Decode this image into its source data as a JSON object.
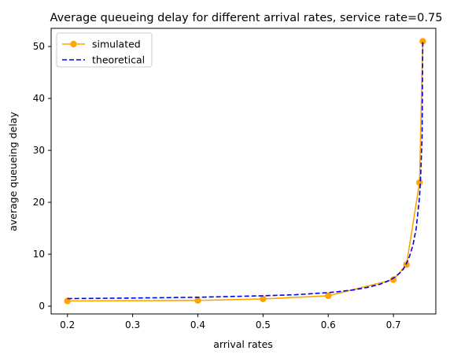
{
  "chart_data": {
    "type": "line",
    "title": "Average queueing delay for different arrival rates, service rate=0.75",
    "xlabel": "arrival rates",
    "ylabel": "average queueing delay",
    "xlim": [
      0.175,
      0.765
    ],
    "ylim": [
      -1.5,
      53.5
    ],
    "xticks": [
      0.2,
      0.3,
      0.4,
      0.5,
      0.6,
      0.7
    ],
    "yticks": [
      0,
      10,
      20,
      30,
      40,
      50
    ],
    "xtick_labels": [
      "0.2",
      "0.3",
      "0.4",
      "0.5",
      "0.6",
      "0.7"
    ],
    "ytick_labels": [
      "0",
      "10",
      "20",
      "30",
      "40",
      "50"
    ],
    "grid": false,
    "legend_position": "upper left",
    "series": [
      {
        "name": "simulated",
        "color": "#ffa500",
        "style": "solid",
        "marker": "circle",
        "x": [
          0.2,
          0.4,
          0.5,
          0.6,
          0.7,
          0.72,
          0.74,
          0.745
        ],
        "y": [
          1.0,
          1.1,
          1.4,
          2.0,
          5.1,
          8.0,
          23.8,
          51.0
        ]
      },
      {
        "name": "theoretical",
        "color": "#0000ff",
        "style": "dashed",
        "marker": "none",
        "x": [
          0.2,
          0.3,
          0.4,
          0.5,
          0.55,
          0.6,
          0.62,
          0.64,
          0.66,
          0.68,
          0.69,
          0.7,
          0.71,
          0.715,
          0.72,
          0.725,
          0.73,
          0.735,
          0.74,
          0.742,
          0.744,
          0.745
        ],
        "y": [
          1.45,
          1.56,
          1.71,
          2.0,
          2.2,
          2.6,
          2.85,
          3.15,
          3.6,
          4.25,
          4.75,
          5.4,
          6.4,
          7.1,
          8.2,
          9.7,
          11.8,
          15.0,
          21.0,
          25.5,
          33.0,
          51.0
        ]
      }
    ]
  }
}
